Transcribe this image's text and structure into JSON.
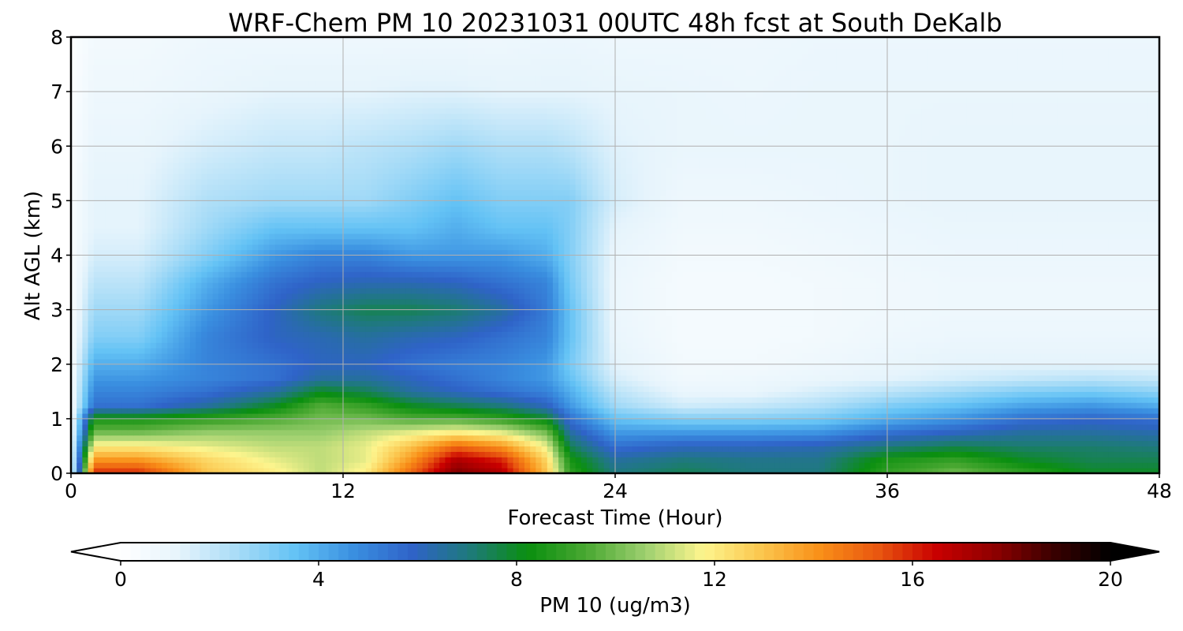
{
  "chart_data": {
    "type": "heatmap",
    "title": "WRF-Chem PM 10  20231031 00UTC 48h fcst at South DeKalb",
    "xlabel": "Forecast Time (Hour)",
    "ylabel": "Alt AGL (km)",
    "xlim": [
      0,
      48
    ],
    "ylim": [
      0,
      8
    ],
    "x_ticks": [
      0,
      12,
      24,
      36,
      48
    ],
    "y_ticks": [
      0,
      1,
      2,
      3,
      4,
      5,
      6,
      7,
      8
    ],
    "grid": true,
    "colorbar": {
      "label": "PM 10  (ug/m3)",
      "orientation": "horizontal",
      "placement": "bottom",
      "range": [
        0,
        20
      ],
      "ticks": [
        0,
        4,
        8,
        12,
        16,
        20
      ],
      "extend": "both",
      "colors": [
        "#ffffff",
        "#e6f4fc",
        "#a8dcf7",
        "#63c2f5",
        "#3a8fe0",
        "#2f63c8",
        "#1e7a7a",
        "#0a8f0f",
        "#4aa832",
        "#9ccf6f",
        "#fdf58e",
        "#fbc64e",
        "#f99018",
        "#e95710",
        "#c90000",
        "#8f0000",
        "#3b0000",
        "#000000"
      ]
    },
    "x_hours": [
      0,
      1,
      3,
      6,
      9,
      11,
      13,
      15,
      17,
      19,
      21,
      22,
      24,
      27,
      30,
      33,
      36,
      39,
      42,
      45,
      48
    ],
    "y_km": [
      0,
      0.25,
      0.5,
      0.75,
      1,
      1.25,
      1.5,
      1.75,
      2,
      2.5,
      3,
      3.5,
      4,
      4.5,
      5,
      6,
      7,
      8
    ],
    "values": [
      [
        0.5,
        16,
        16,
        13,
        12,
        11,
        12,
        15,
        18,
        17,
        13,
        9,
        7,
        7.5,
        7,
        7,
        9,
        10,
        9,
        8,
        8
      ],
      [
        0.5,
        14,
        14,
        12.5,
        11.5,
        11,
        11.5,
        14,
        17,
        16,
        12.5,
        8.5,
        6.5,
        7,
        6.8,
        6.8,
        8.5,
        9,
        8,
        7.5,
        7.5
      ],
      [
        0.4,
        12,
        12,
        11.5,
        11,
        11,
        11.5,
        13,
        15,
        14,
        11.5,
        7.5,
        5.5,
        6,
        6,
        6.2,
        7,
        7.5,
        7.2,
        7.2,
        7
      ],
      [
        0.3,
        10,
        10,
        10.5,
        10.5,
        10.5,
        11,
        11.5,
        12,
        11.5,
        10,
        6.5,
        4.5,
        4.5,
        4.5,
        4.6,
        5.5,
        6,
        6.5,
        6.5,
        6.3
      ],
      [
        0.3,
        8.5,
        8.5,
        9,
        9.5,
        10,
        10,
        9.5,
        9.5,
        9,
        8,
        5.5,
        3.5,
        3,
        3,
        3.2,
        4,
        4.6,
        5.5,
        5.8,
        5.5
      ],
      [
        0.3,
        5.5,
        5.5,
        6.5,
        8,
        9.5,
        9,
        8,
        7.5,
        7,
        6,
        4.5,
        2.5,
        1.6,
        1.8,
        2.2,
        3,
        3.5,
        4.2,
        4.5,
        4
      ],
      [
        0.3,
        5,
        5,
        5.5,
        6.5,
        8,
        7.5,
        6.5,
        6,
        5.5,
        5,
        4,
        2,
        1,
        1,
        1.5,
        2,
        2.5,
        3,
        3.2,
        2.8
      ],
      [
        0.3,
        4.5,
        4.5,
        5,
        5.5,
        6.5,
        6.5,
        6,
        5.5,
        5,
        4.5,
        3.5,
        1.5,
        0.7,
        0.8,
        1,
        1.2,
        1.5,
        1.8,
        2,
        1.8
      ],
      [
        0.3,
        4,
        4,
        5,
        5.5,
        6,
        6,
        5.5,
        5.2,
        5,
        4.5,
        3.2,
        1.2,
        0.6,
        0.6,
        0.8,
        1,
        1.2,
        1.2,
        1.2,
        1.2
      ],
      [
        0.3,
        3,
        3,
        5,
        6,
        6.2,
        6.5,
        6.2,
        6,
        5.5,
        5,
        3.5,
        1,
        0.5,
        0.5,
        0.6,
        0.8,
        0.9,
        0.9,
        0.9,
        0.9
      ],
      [
        0.3,
        2.5,
        2.5,
        4.5,
        6,
        7,
        7.5,
        7.5,
        7.2,
        6.5,
        5.2,
        3.5,
        0.9,
        0.5,
        0.5,
        0.6,
        0.7,
        0.8,
        0.8,
        0.8,
        0.8
      ],
      [
        0.3,
        2,
        2,
        4,
        5.5,
        6,
        6.2,
        6.2,
        6,
        5.5,
        5,
        3.2,
        0.9,
        0.5,
        0.5,
        0.6,
        0.7,
        0.8,
        0.8,
        0.8,
        0.8
      ],
      [
        0.3,
        1.5,
        1.5,
        3,
        4.5,
        5,
        5,
        4.5,
        4.5,
        4.5,
        4,
        3,
        1,
        0.6,
        0.6,
        0.7,
        0.8,
        0.9,
        0.9,
        0.9,
        0.9
      ],
      [
        0.3,
        1.2,
        1.2,
        2.5,
        3.5,
        3.5,
        3.5,
        3.5,
        4,
        3.5,
        3.5,
        3,
        1.2,
        0.7,
        0.7,
        0.8,
        0.9,
        1,
        1,
        1,
        1
      ],
      [
        0.3,
        1.2,
        1.2,
        2.2,
        2.5,
        2.5,
        2.5,
        3,
        3.5,
        3,
        3,
        3,
        1.5,
        0.8,
        0.8,
        0.9,
        1,
        1.1,
        1.1,
        1.1,
        1.1
      ],
      [
        0.3,
        1,
        1,
        1.5,
        1.8,
        1.8,
        2,
        2.2,
        2.5,
        2.2,
        2.2,
        2,
        1.3,
        1,
        1,
        1,
        1,
        1.1,
        1.1,
        1.1,
        1.1
      ],
      [
        0.2,
        0.8,
        0.8,
        1,
        1.2,
        1.2,
        1.2,
        1.3,
        1.3,
        1.2,
        1.2,
        1.2,
        1.1,
        1,
        0.9,
        1,
        1,
        1,
        1,
        1,
        1
      ],
      [
        0.2,
        0.6,
        0.6,
        0.8,
        0.8,
        0.8,
        0.8,
        0.8,
        0.8,
        0.8,
        0.9,
        0.9,
        0.8,
        0.8,
        0.8,
        0.9,
        0.9,
        0.9,
        0.9,
        0.9,
        0.9
      ]
    ]
  }
}
